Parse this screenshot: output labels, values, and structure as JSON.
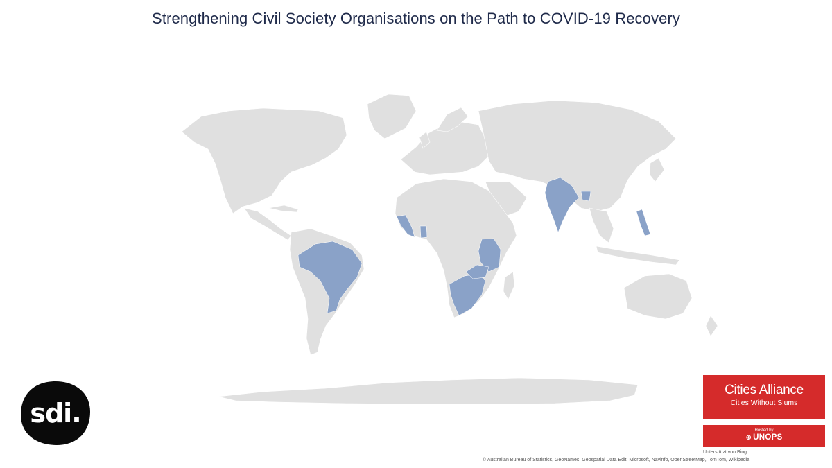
{
  "title": "Strengthening Civil Society Organisations on the Path to COVID-19 Recovery",
  "map": {
    "land_color": "#e0e0e0",
    "highlight_color": "#8aa2c8",
    "highlighted_countries": [
      "Brazil",
      "Sierra Leone",
      "Liberia",
      "Ghana",
      "Kenya",
      "Uganda",
      "Tanzania",
      "Malawi",
      "Zambia",
      "Zimbabwe",
      "Namibia",
      "Botswana",
      "South Africa",
      "Eswatini",
      "Lesotho",
      "India",
      "Bangladesh",
      "Philippines"
    ]
  },
  "logos": {
    "sdi": {
      "text": "sdi."
    },
    "cities_alliance": {
      "name": "Cities Alliance",
      "tagline": "Cities Without Slums",
      "color": "#d52b2b"
    },
    "unops": {
      "hosted_by": "Hosted by",
      "name": "UNOPS",
      "icon": "un-globe-icon"
    }
  },
  "attribution": {
    "powered_by": "Unterstützt von Bing",
    "copyright": "© Australian Bureau of Statistics, GeoNames, Geospatial Data Edit, Microsoft, Navinfo, OpenStreetMap, TomTom, Wikipedia"
  }
}
